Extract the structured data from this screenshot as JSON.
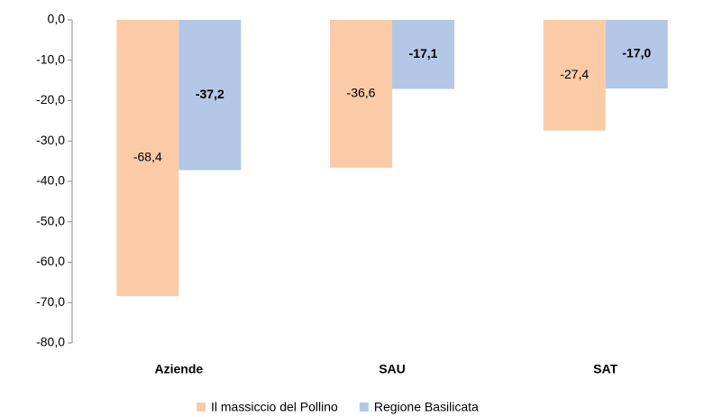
{
  "chart_data": {
    "type": "bar",
    "categories": [
      "Aziende",
      "SAU",
      "SAT"
    ],
    "series": [
      {
        "name": "Il massiccio del Pollino",
        "color": "#fbcba7",
        "values": [
          -68.4,
          -36.6,
          -27.4
        ],
        "value_labels": [
          "-68,4",
          "-36,6",
          "-27,4"
        ]
      },
      {
        "name": "Regione Basilicata",
        "color": "#b4c7e6",
        "values": [
          -37.2,
          -17.1,
          -17.0
        ],
        "value_labels": [
          "-37,2",
          "-17,1",
          "-17,0"
        ]
      }
    ],
    "ylim": [
      -80,
      0
    ],
    "yticks": [
      {
        "value": 0,
        "label": "0,0"
      },
      {
        "value": -10,
        "label": "-10,0"
      },
      {
        "value": -20,
        "label": "-20,0"
      },
      {
        "value": -30,
        "label": "-30,0"
      },
      {
        "value": -40,
        "label": "-40,0"
      },
      {
        "value": -50,
        "label": "-50,0"
      },
      {
        "value": -60,
        "label": "-60,0"
      },
      {
        "value": -70,
        "label": "-70,0"
      },
      {
        "value": -80,
        "label": "-80,0"
      }
    ],
    "legend": "bottom"
  }
}
